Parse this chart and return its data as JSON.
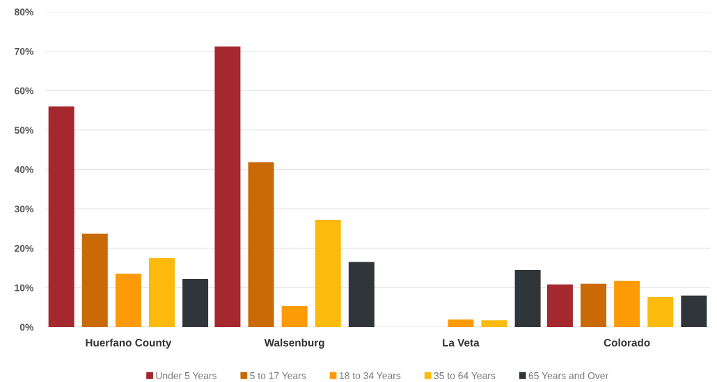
{
  "chart_data": {
    "type": "bar",
    "categories": [
      "Huerfano County",
      "Walsenburg",
      "La Veta",
      "Colorado"
    ],
    "series": [
      {
        "name": "Under 5 Years",
        "color": "#a4282e",
        "values": [
          56.0,
          71.2,
          0,
          10.8
        ]
      },
      {
        "name": "5 to 17 Years",
        "color": "#c96a06",
        "values": [
          23.7,
          41.8,
          0,
          11.0
        ]
      },
      {
        "name": "18 to 34 Years",
        "color": "#fc9a08",
        "values": [
          13.5,
          5.3,
          1.9,
          11.7
        ]
      },
      {
        "name": "35 to 64 Years",
        "color": "#fcbb0c",
        "values": [
          17.5,
          27.2,
          1.7,
          7.6
        ]
      },
      {
        "name": "65 Years and Over",
        "color": "#30353a",
        "values": [
          12.2,
          16.5,
          14.5,
          8.0
        ]
      }
    ],
    "ylim": [
      0,
      80
    ],
    "yticks": [
      {
        "value": 0,
        "label": "0%"
      },
      {
        "value": 10,
        "label": "10%"
      },
      {
        "value": 20,
        "label": "20%"
      },
      {
        "value": 30,
        "label": "30%"
      },
      {
        "value": 40,
        "label": "40%"
      },
      {
        "value": 50,
        "label": "50%"
      },
      {
        "value": 60,
        "label": "60%"
      },
      {
        "value": 70,
        "label": "70%"
      },
      {
        "value": 80,
        "label": "80%"
      }
    ],
    "grid": "y",
    "legend": "bottom"
  }
}
